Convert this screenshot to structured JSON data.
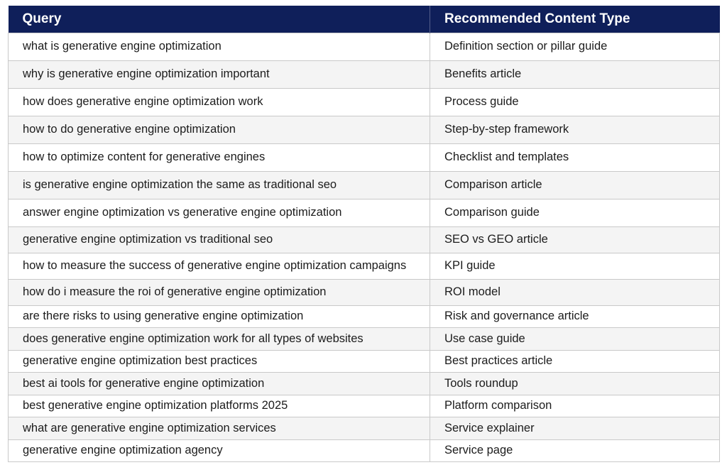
{
  "table": {
    "headers": [
      "Query",
      "Recommended Content Type"
    ],
    "rows": [
      {
        "query": "what is generative engine optimization",
        "type": "Definition section or pillar guide"
      },
      {
        "query": "why is generative engine optimization important",
        "type": "Benefits article"
      },
      {
        "query": "how does generative engine optimization work",
        "type": "Process guide"
      },
      {
        "query": "how to do generative engine optimization",
        "type": "Step-by-step framework"
      },
      {
        "query": "how to optimize content for generative engines",
        "type": "Checklist and templates"
      },
      {
        "query": "is generative engine optimization the same as traditional seo",
        "type": "Comparison article"
      },
      {
        "query": "answer engine optimization vs generative engine optimization",
        "type": "Comparison guide"
      },
      {
        "query": "generative engine optimization vs traditional seo",
        "type": "SEO vs GEO article"
      },
      {
        "query": "how to measure the success of generative engine optimization campaigns",
        "type": "KPI guide"
      },
      {
        "query": "how do i measure the roi of generative engine optimization",
        "type": "ROI model"
      },
      {
        "query": "are there risks to using generative engine optimization",
        "type": "Risk and governance article"
      },
      {
        "query": "does generative engine optimization work for all types of websites",
        "type": "Use case guide"
      },
      {
        "query": "generative engine optimization best practices",
        "type": "Best practices article"
      },
      {
        "query": "best ai tools for generative engine optimization",
        "type": "Tools roundup"
      },
      {
        "query": "best generative engine optimization platforms 2025",
        "type": "Platform comparison"
      },
      {
        "query": "what are generative engine optimization services",
        "type": "Service explainer"
      },
      {
        "query": "generative engine optimization agency",
        "type": "Service page"
      }
    ]
  },
  "colors": {
    "header_bg": "#0f1f5a",
    "header_text": "#ffffff",
    "row_alt_bg": "#f4f4f4",
    "border": "#c9c9c9"
  }
}
